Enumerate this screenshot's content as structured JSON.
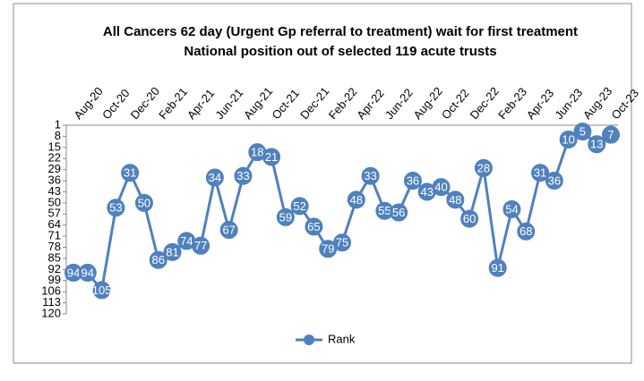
{
  "chart_data": {
    "type": "line",
    "title": "All Cancers 62 day (Urgent Gp referral to treatment) wait for first treatment",
    "subtitle": "National position out of selected 119 acute trusts",
    "categories": [
      "Aug-20",
      null,
      "Oct-20",
      null,
      "Dec-20",
      null,
      "Feb-21",
      null,
      "Apr-21",
      null,
      "Jun-21",
      null,
      "Aug-21",
      null,
      "Oct-21",
      null,
      "Dec-21",
      null,
      "Feb-22",
      null,
      "Apr-22",
      null,
      "Jun-22",
      null,
      "Aug-22",
      null,
      "Oct-22",
      null,
      "Dec-22",
      null,
      "Feb-23",
      null,
      "Apr-23",
      null,
      "Jun-23",
      null,
      "Aug-23",
      null,
      "Oct-23"
    ],
    "series": [
      {
        "name": "Rank",
        "color": "#4f81bd",
        "values": [
          94,
          94,
          105,
          53,
          31,
          50,
          86,
          81,
          74,
          77,
          34,
          67,
          33,
          18,
          21,
          59,
          52,
          65,
          79,
          75,
          48,
          33,
          55,
          56,
          36,
          43,
          40,
          48,
          60,
          28,
          91,
          54,
          68,
          31,
          36,
          10,
          5,
          13,
          7
        ]
      }
    ],
    "ylim": [
      1,
      120
    ],
    "yticks": [
      1,
      8,
      15,
      22,
      29,
      36,
      43,
      50,
      57,
      64,
      71,
      78,
      85,
      92,
      99,
      106,
      113,
      120
    ],
    "y_reversed": true,
    "grid": false,
    "legend": "bottom"
  }
}
